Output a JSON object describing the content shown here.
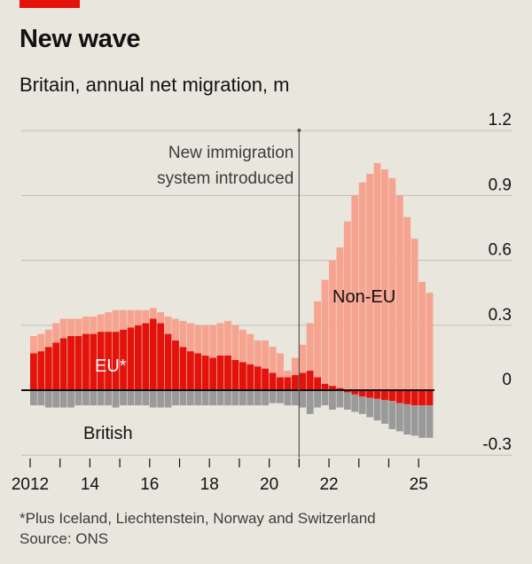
{
  "header": {
    "title": "New wave",
    "subtitle": "Britain, annual net migration, m"
  },
  "footer": {
    "footnote": "*Plus Iceland, Liechtenstein, Norway and Switzerland",
    "source": "Source: ONS"
  },
  "chart_data": {
    "type": "bar",
    "stacked": true,
    "title": "New wave",
    "subtitle": "Britain, annual net migration, m",
    "ylim": [
      -0.3,
      1.2
    ],
    "yticks": [
      {
        "value": 1.2,
        "label": "1.2"
      },
      {
        "value": 0.9,
        "label": "0.9"
      },
      {
        "value": 0.6,
        "label": "0.6"
      },
      {
        "value": 0.3,
        "label": "0.3"
      },
      {
        "value": 0,
        "label": "0"
      },
      {
        "value": -0.3,
        "label": "-0.3"
      }
    ],
    "grid": true,
    "xlim": [
      2012,
      2025.5
    ],
    "x_labels": [
      {
        "value": 2012,
        "label": "2012"
      },
      {
        "value": 2014,
        "label": "14"
      },
      {
        "value": 2016,
        "label": "16"
      },
      {
        "value": 2018,
        "label": "18"
      },
      {
        "value": 2020,
        "label": "20"
      },
      {
        "value": 2022,
        "label": "22"
      },
      {
        "value": 2025,
        "label": "25"
      }
    ],
    "x_ticks": [
      2012,
      2013,
      2014,
      2015,
      2016,
      2017,
      2018,
      2019,
      2020,
      2021,
      2022,
      2023,
      2024,
      2025
    ],
    "colors": {
      "eu": "#e3120b",
      "non_eu": "#f6a38f",
      "british": "#9a9a9a"
    },
    "periods": [
      "2012Q1",
      "2012Q2",
      "2012Q3",
      "2012Q4",
      "2013Q1",
      "2013Q2",
      "2013Q3",
      "2013Q4",
      "2014Q1",
      "2014Q2",
      "2014Q3",
      "2014Q4",
      "2015Q1",
      "2015Q2",
      "2015Q3",
      "2015Q4",
      "2016Q1",
      "2016Q2",
      "2016Q3",
      "2016Q4",
      "2017Q1",
      "2017Q2",
      "2017Q3",
      "2017Q4",
      "2018Q1",
      "2018Q2",
      "2018Q3",
      "2018Q4",
      "2019Q1",
      "2019Q2",
      "2019Q3",
      "2019Q4",
      "2020Q1",
      "2020Q2",
      "2020Q3",
      "2020Q4",
      "2021Q1",
      "2021Q2",
      "2021Q3",
      "2021Q4",
      "2022Q1",
      "2022Q2",
      "2022Q3",
      "2022Q4",
      "2023Q1",
      "2023Q2",
      "2023Q3",
      "2023Q4",
      "2024Q1",
      "2024Q2",
      "2024Q3",
      "2024Q4",
      "2025Q1",
      "2025Q2"
    ],
    "series": [
      {
        "name": "EU*",
        "key": "eu",
        "values": [
          0.17,
          0.18,
          0.2,
          0.22,
          0.24,
          0.25,
          0.25,
          0.26,
          0.26,
          0.27,
          0.27,
          0.27,
          0.28,
          0.29,
          0.3,
          0.31,
          0.33,
          0.31,
          0.26,
          0.23,
          0.2,
          0.18,
          0.17,
          0.16,
          0.15,
          0.16,
          0.16,
          0.14,
          0.13,
          0.12,
          0.11,
          0.1,
          0.08,
          0.06,
          0.06,
          0.07,
          0.08,
          0.09,
          0.06,
          0.03,
          0.02,
          0.01,
          -0.01,
          -0.02,
          -0.03,
          -0.035,
          -0.04,
          -0.045,
          -0.05,
          -0.06,
          -0.065,
          -0.07,
          -0.07,
          -0.07
        ]
      },
      {
        "name": "Non-EU",
        "key": "non_eu",
        "values": [
          0.08,
          0.08,
          0.08,
          0.09,
          0.09,
          0.08,
          0.08,
          0.08,
          0.08,
          0.08,
          0.09,
          0.1,
          0.09,
          0.08,
          0.07,
          0.06,
          0.05,
          0.05,
          0.08,
          0.1,
          0.12,
          0.13,
          0.13,
          0.14,
          0.15,
          0.15,
          0.16,
          0.16,
          0.15,
          0.14,
          0.12,
          0.13,
          0.12,
          0.11,
          0.03,
          0.08,
          0.13,
          0.22,
          0.35,
          0.48,
          0.58,
          0.65,
          0.78,
          0.9,
          0.96,
          1.0,
          1.05,
          1.02,
          0.98,
          0.9,
          0.8,
          0.7,
          0.5,
          0.45
        ]
      },
      {
        "name": "British",
        "key": "british",
        "values": [
          -0.07,
          -0.07,
          -0.08,
          -0.08,
          -0.08,
          -0.08,
          -0.07,
          -0.07,
          -0.07,
          -0.07,
          -0.07,
          -0.08,
          -0.07,
          -0.07,
          -0.07,
          -0.07,
          -0.08,
          -0.08,
          -0.08,
          -0.07,
          -0.07,
          -0.07,
          -0.07,
          -0.07,
          -0.07,
          -0.07,
          -0.07,
          -0.07,
          -0.07,
          -0.07,
          -0.07,
          -0.07,
          -0.06,
          -0.06,
          -0.07,
          -0.07,
          -0.08,
          -0.11,
          -0.08,
          -0.07,
          -0.09,
          -0.08,
          -0.08,
          -0.08,
          -0.08,
          -0.09,
          -0.1,
          -0.11,
          -0.13,
          -0.13,
          -0.14,
          -0.14,
          -0.15,
          -0.15
        ]
      }
    ],
    "annotations": [
      {
        "text_lines": [
          "New immigration",
          "system introduced"
        ],
        "at_x": 2021.0
      },
      {
        "text": "Non-EU",
        "series": "non_eu"
      },
      {
        "text": "EU*",
        "series": "eu"
      },
      {
        "text": "British",
        "series": "british"
      }
    ]
  }
}
